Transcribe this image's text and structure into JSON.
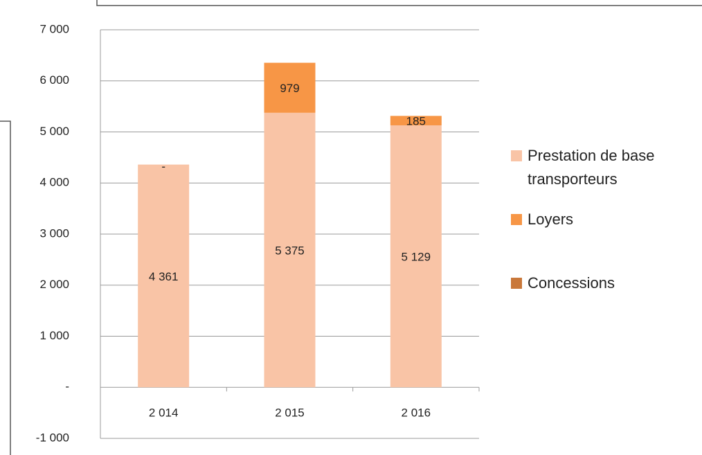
{
  "chart_data": {
    "type": "stacked_bar",
    "categories": [
      "2 014",
      "2 015",
      "2 016"
    ],
    "series": [
      {
        "name": "Prestation de base transporteurs",
        "color": "#f9c4a6",
        "values": [
          4361,
          5375,
          5129
        ],
        "value_labels": [
          "4 361",
          "5 375",
          "5 129"
        ]
      },
      {
        "name": "Loyers",
        "color": "#f79646",
        "values": [
          0,
          979,
          185
        ],
        "value_labels": [
          "-",
          "979",
          "185"
        ]
      },
      {
        "name": "Concessions",
        "color": "#c9783a",
        "values": [
          0,
          0,
          0
        ]
      }
    ],
    "ylim": [
      -1000,
      7000
    ],
    "yticks": [
      {
        "value": -1000,
        "label": "-1 000"
      },
      {
        "value": 0,
        "label": "-"
      },
      {
        "value": 1000,
        "label": "1 000"
      },
      {
        "value": 2000,
        "label": "2 000"
      },
      {
        "value": 3000,
        "label": "3 000"
      },
      {
        "value": 4000,
        "label": "4 000"
      },
      {
        "value": 5000,
        "label": "5 000"
      },
      {
        "value": 6000,
        "label": "6 000"
      },
      {
        "value": 7000,
        "label": "7 000"
      }
    ],
    "grid": true,
    "legend": "right"
  }
}
